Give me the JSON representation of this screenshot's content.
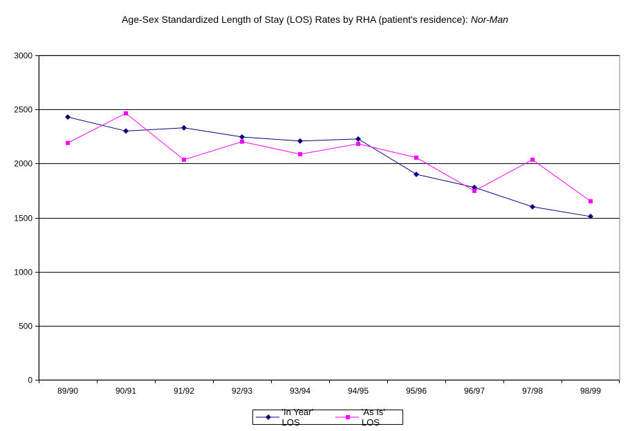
{
  "chart_data": {
    "type": "line",
    "title": "Age-Sex Standardized Length of Stay (LOS) Rates  by  RHA (patient's residence):",
    "title_region": "Nor-Man",
    "xlabel": "",
    "ylabel": "",
    "categories": [
      "89/90",
      "90/91",
      "91/92",
      "92/93",
      "93/94",
      "94/95",
      "95/96",
      "96/97",
      "97/98",
      "98/99"
    ],
    "ylim": [
      0,
      3000
    ],
    "yticks": [
      "0",
      "500",
      "1000",
      "1500",
      "2000",
      "2500",
      "3000"
    ],
    "grid": true,
    "legend_position": "bottom",
    "series": [
      {
        "name": "'In Year' LOS",
        "color": "#000080",
        "marker": "diamond",
        "values": [
          2430,
          2300,
          2330,
          2245,
          2208,
          2227,
          1900,
          1779,
          1600,
          1510
        ]
      },
      {
        "name": "'As Is' LOS",
        "color": "#FF00FF",
        "marker": "square",
        "values": [
          2190,
          2464,
          2035,
          2202,
          2086,
          2182,
          2054,
          1747,
          2035,
          1651
        ]
      }
    ]
  }
}
